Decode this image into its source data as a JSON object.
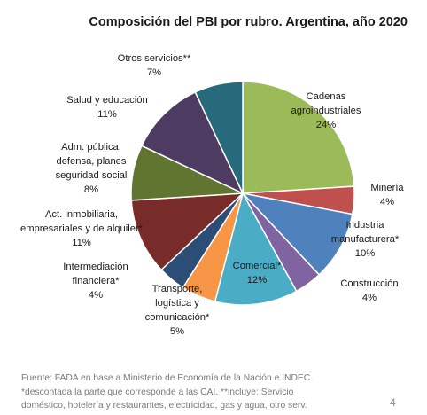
{
  "chart_data": {
    "type": "pie",
    "title": "Composición del PBI por rubro. Argentina, año 2020",
    "slices": [
      {
        "label_lines": [
          "Cadenas",
          "agroindustriales"
        ],
        "value": 24,
        "value_label": "24%",
        "color": "#9BBB59"
      },
      {
        "label_lines": [
          "Minería"
        ],
        "value": 4,
        "value_label": "4%",
        "color": "#C0504D"
      },
      {
        "label_lines": [
          "Industria",
          "manufacturera*"
        ],
        "value": 10,
        "value_label": "10%",
        "color": "#4F81BD"
      },
      {
        "label_lines": [
          "Construcción"
        ],
        "value": 4,
        "value_label": "4%",
        "color": "#8064A2"
      },
      {
        "label_lines": [
          "Comercial*"
        ],
        "value": 12,
        "value_label": "12%",
        "color": "#4BACC6"
      },
      {
        "label_lines": [
          "Transporte,",
          "logística y",
          "comunicación*"
        ],
        "value": 5,
        "value_label": "5%",
        "color": "#F79646"
      },
      {
        "label_lines": [
          "Intermediación",
          "financiera*"
        ],
        "value": 4,
        "value_label": "4%",
        "color": "#2C4D75"
      },
      {
        "label_lines": [
          "Act. inmobiliaria,",
          "empresariales y de alquiler*"
        ],
        "value": 11,
        "value_label": "11%",
        "color": "#772C2A"
      },
      {
        "label_lines": [
          "Adm. pública,",
          "defensa, planes",
          "seguridad social"
        ],
        "value": 8,
        "value_label": "8%",
        "color": "#5F7530"
      },
      {
        "label_lines": [
          "Salud y educación"
        ],
        "value": 11,
        "value_label": "11%",
        "color": "#4D3B62"
      },
      {
        "label_lines": [
          "Otros servicios**"
        ],
        "value": 7,
        "value_label": "7%",
        "color": "#276A7C"
      }
    ]
  },
  "footer": {
    "lines": [
      "Fuente: FADA en base a Ministerio de Economía de la Nación e INDEC.",
      "*descontada la parte que corresponde a las CAI. **incluye: Servicio",
      "doméstico, hotelería y restaurantes, electricidad, gas y agua, otro serv."
    ]
  },
  "page_number": "4"
}
